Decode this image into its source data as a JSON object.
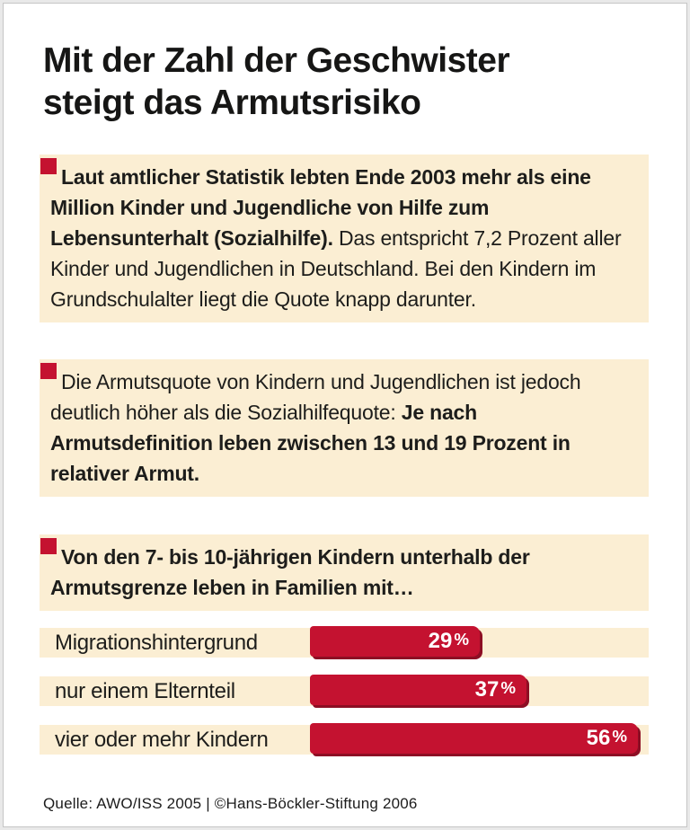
{
  "title": "Mit der Zahl der Geschwister\nsteigt das Armutsrisiko",
  "colors": {
    "accent_red": "#c41230",
    "bar_shadow": "#8d0e24",
    "block_background": "#fbeed3",
    "text": "#1d1d1b",
    "bar_value_text": "#ffffff"
  },
  "blocks": [
    {
      "segments": [
        {
          "bold": true,
          "text": "Laut amtlicher Statistik lebten Ende 2003 mehr als eine Million Kinder und Jugendliche von Hilfe zum Lebensunterhalt (Sozialhilfe)."
        },
        {
          "bold": false,
          "text": " Das entspricht 7,2 Prozent aller Kinder und Jugendlichen in Deutschland. Bei den Kindern im Grundschulalter liegt die Quote knapp darunter."
        }
      ]
    },
    {
      "segments": [
        {
          "bold": false,
          "text": "Die Armutsquote von Kindern und Jugendlichen ist jedoch deutlich höher als die Sozialhilfequote: "
        },
        {
          "bold": true,
          "text": "Je nach Armutsdefinition leben zwischen 13 und 19 Prozent in relativer Armut."
        }
      ]
    },
    {
      "segments": [
        {
          "bold": true,
          "text": "Von den 7- bis 10-jährigen Kindern unterhalb der Armutsgrenze leben in Familien mit…"
        }
      ]
    }
  ],
  "chart_data": {
    "type": "bar",
    "orientation": "horizontal",
    "title": "Von den 7- bis 10-jährigen Kindern unterhalb der Armutsgrenze leben in Familien mit…",
    "categories": [
      "Migrationshintergrund",
      "nur einem Elternteil",
      "vier oder mehr Kindern"
    ],
    "values": [
      29,
      37,
      56
    ],
    "unit": "%",
    "value_labels": [
      "29 %",
      "37 %",
      "56 %"
    ],
    "xlim": [
      0,
      60
    ],
    "grid": false,
    "legend": false
  },
  "footer": {
    "source": "Quelle: AWO/ISS 2005 | ©Hans-Böckler-Stiftung 2006"
  }
}
